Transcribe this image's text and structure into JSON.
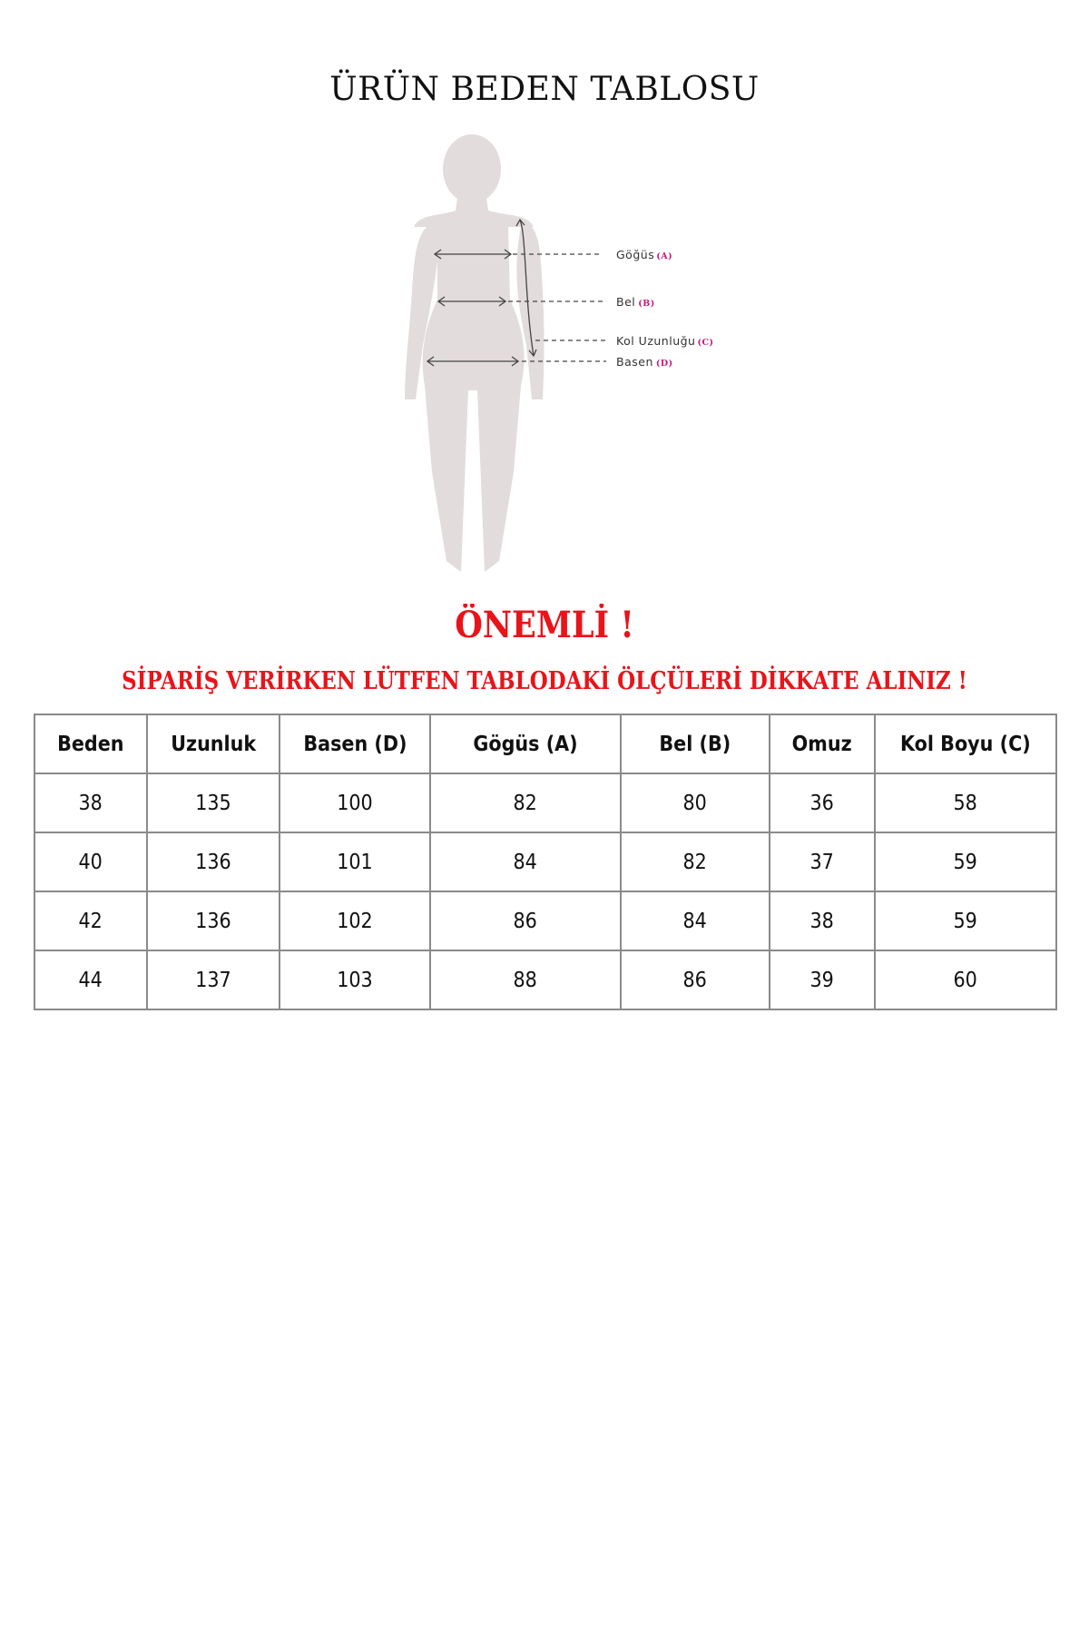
{
  "title": "ÜRÜN BEDEN TABLOSU",
  "diagram": {
    "labels": [
      {
        "text": "Göğüs",
        "code": "(A)"
      },
      {
        "text": "Bel",
        "code": "(B)"
      },
      {
        "text": "Kol Uzunluğu",
        "code": "(C)"
      },
      {
        "text": "Basen",
        "code": "(D)"
      }
    ],
    "silhouette_color": "#e3dcdc",
    "code_color": "#c2187a"
  },
  "warning": {
    "heading": "ÖNEMLİ !",
    "message": "SİPARİŞ VERİRKEN LÜTFEN TABLODAKİ ÖLÇÜLERİ DİKKATE ALINIZ !",
    "color": "#e8141a"
  },
  "size_table": {
    "headers": [
      "Beden",
      "Uzunluk",
      "Basen (D)",
      "Gögüs (A)",
      "Bel (B)",
      "Omuz",
      "Kol Boyu (C)"
    ],
    "rows": [
      [
        "38",
        "135",
        "100",
        "82",
        "80",
        "36",
        "58"
      ],
      [
        "40",
        "136",
        "101",
        "84",
        "82",
        "37",
        "59"
      ],
      [
        "42",
        "136",
        "102",
        "86",
        "84",
        "38",
        "59"
      ],
      [
        "44",
        "137",
        "103",
        "88",
        "86",
        "39",
        "60"
      ]
    ]
  }
}
